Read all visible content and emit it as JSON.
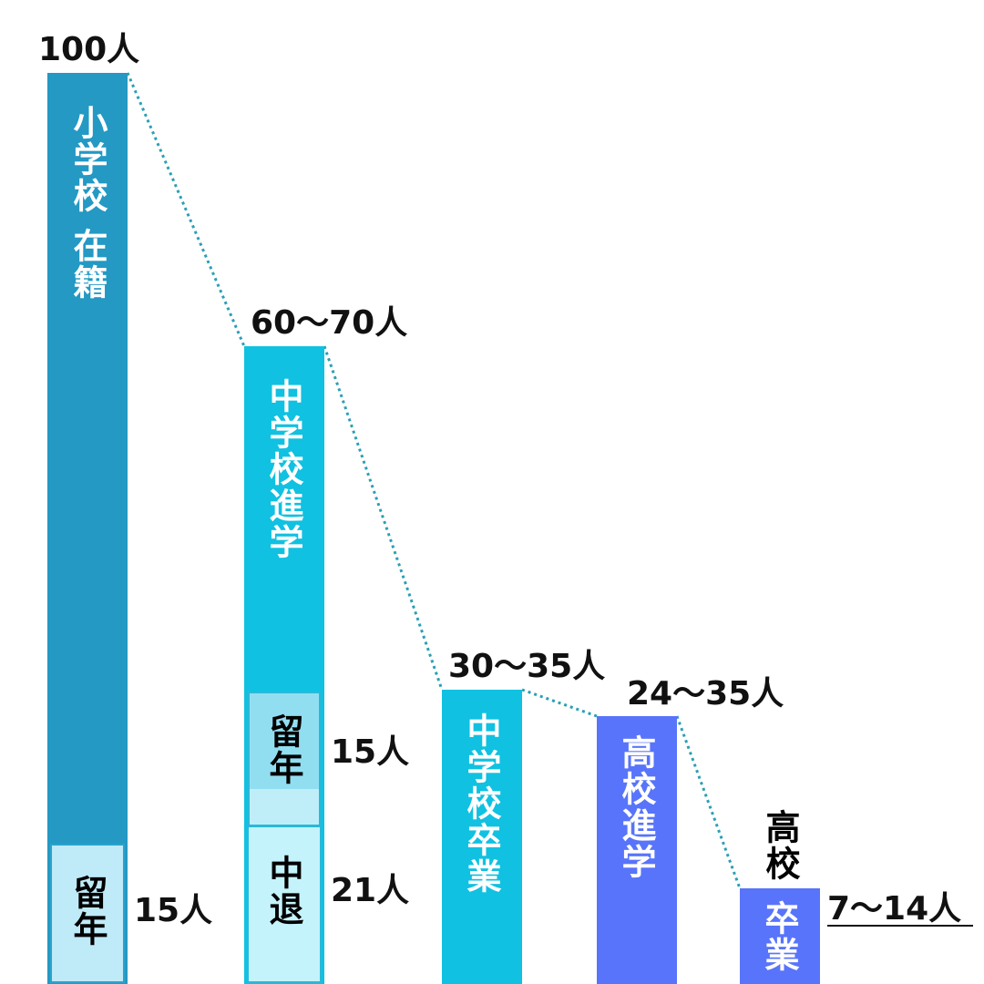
{
  "bars": [
    {
      "label": "小学校 在籍",
      "count": "100人",
      "sub": [
        {
          "label": "留年",
          "count": "15人"
        }
      ]
    },
    {
      "label": "中学校進学",
      "count": "60〜70人",
      "sub": [
        {
          "label": "留年",
          "count": "15人"
        },
        {
          "label": "中退",
          "count": "21人"
        }
      ]
    },
    {
      "label": "中学校卒業",
      "count": "30〜35人"
    },
    {
      "label": "高校進学",
      "count": "24〜35人"
    },
    {
      "top_label": "高校",
      "label": "卒業",
      "count": "7〜14人"
    }
  ]
}
